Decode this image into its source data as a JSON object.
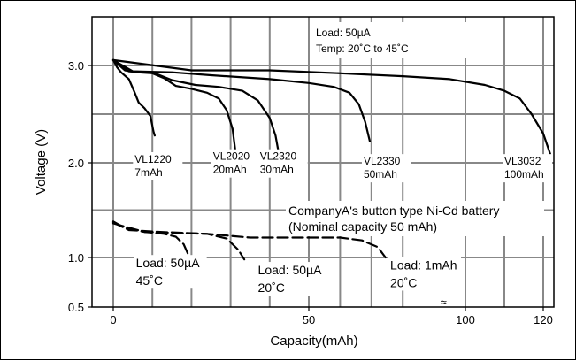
{
  "chart_data": {
    "type": "line",
    "title": "",
    "xlabel": "Capacity(mAh)",
    "ylabel": "Voltage (V)",
    "xlim": [
      -3,
      122
    ],
    "ylim": [
      0.5,
      3.45
    ],
    "x_ticks": [
      "0",
      "50",
      "100",
      "120"
    ],
    "y_ticks": [
      "0.5",
      "1.0",
      "2.0",
      "3.0"
    ],
    "axis_break_glyph": "≈",
    "grid": true,
    "annotations": {
      "lithium_conditions": [
        "Load: 50µA",
        "Temp: 20˚C to 45˚C"
      ],
      "nicd_caption": [
        "CompanyA's button type Ni-Cd battery",
        "(Nominal capacity 50 mAh)"
      ]
    },
    "series": [
      {
        "name": "VL1220",
        "sub": "7mAh",
        "style": "solid",
        "label_x": 5.5,
        "label_y": 2.0,
        "points": [
          [
            0,
            3.05
          ],
          [
            1,
            2.98
          ],
          [
            2,
            2.93
          ],
          [
            4,
            2.86
          ],
          [
            5.5,
            2.72
          ],
          [
            6.5,
            2.62
          ],
          [
            8,
            2.56
          ],
          [
            9.5,
            2.48
          ],
          [
            10.3,
            2.32
          ],
          [
            10.6,
            2.28
          ]
        ]
      },
      {
        "name": "VL2020",
        "sub": "20mAh",
        "style": "solid",
        "label_x": 25.5,
        "label_y": 2.03,
        "points": [
          [
            0,
            3.05
          ],
          [
            3,
            2.95
          ],
          [
            6,
            2.93
          ],
          [
            10,
            2.92
          ],
          [
            13,
            2.87
          ],
          [
            16,
            2.79
          ],
          [
            20,
            2.76
          ],
          [
            24,
            2.72
          ],
          [
            27,
            2.66
          ],
          [
            29,
            2.54
          ],
          [
            30.5,
            2.35
          ],
          [
            31.3,
            2.1
          ]
        ]
      },
      {
        "name": "VL2320",
        "sub": "30mAh",
        "style": "solid",
        "label_x": 37.5,
        "label_y": 2.03,
        "points": [
          [
            0,
            3.05
          ],
          [
            4,
            2.94
          ],
          [
            10,
            2.93
          ],
          [
            15,
            2.85
          ],
          [
            21,
            2.8
          ],
          [
            27,
            2.78
          ],
          [
            33,
            2.74
          ],
          [
            37,
            2.64
          ],
          [
            40,
            2.46
          ],
          [
            41.5,
            2.28
          ],
          [
            42.3,
            2.1
          ]
        ]
      },
      {
        "name": "VL2330",
        "sub": "50mAh",
        "style": "solid",
        "label_x": 67.5,
        "label_y": 1.98,
        "points": [
          [
            0,
            3.05
          ],
          [
            5,
            2.94
          ],
          [
            15,
            2.93
          ],
          [
            25,
            2.9
          ],
          [
            40,
            2.86
          ],
          [
            50,
            2.82
          ],
          [
            58,
            2.78
          ],
          [
            63,
            2.72
          ],
          [
            66,
            2.6
          ],
          [
            68,
            2.42
          ],
          [
            69.5,
            2.22
          ]
        ]
      },
      {
        "name": "VL3032",
        "sub": "100mAh",
        "style": "solid",
        "label_x": 110,
        "label_y": 1.98,
        "points": [
          [
            0,
            3.05
          ],
          [
            20,
            2.95
          ],
          [
            40,
            2.95
          ],
          [
            60,
            2.92
          ],
          [
            80,
            2.89
          ],
          [
            95,
            2.86
          ],
          [
            105,
            2.8
          ],
          [
            110,
            2.74
          ],
          [
            114,
            2.66
          ],
          [
            117,
            2.5
          ],
          [
            120,
            2.3
          ],
          [
            121.5,
            2.06
          ]
        ]
      },
      {
        "name": "Load: 50µA",
        "sub": "45˚C",
        "style": "dashed",
        "label_x": 5.8,
        "label_y": 0.9,
        "points": [
          [
            0,
            1.38
          ],
          [
            3,
            1.31
          ],
          [
            8,
            1.27
          ],
          [
            13,
            1.25
          ],
          [
            16,
            1.22
          ],
          [
            18,
            1.14
          ],
          [
            19.5,
            1.0
          ],
          [
            20.5,
            0.85
          ]
        ]
      },
      {
        "name": "Load: 50µA",
        "sub": "20˚C",
        "style": "dashed",
        "label_x": 37,
        "label_y": 0.83,
        "points": [
          [
            0,
            1.37
          ],
          [
            4,
            1.29
          ],
          [
            12,
            1.27
          ],
          [
            24,
            1.25
          ],
          [
            29,
            1.2
          ],
          [
            32,
            1.08
          ],
          [
            33.5,
            0.98
          ]
        ]
      },
      {
        "name": "Load: 1mAh",
        "sub": "20˚C",
        "style": "dashed",
        "label_x": 76,
        "label_y": 0.88,
        "points": [
          [
            0,
            1.36
          ],
          [
            8,
            1.27
          ],
          [
            24,
            1.25
          ],
          [
            35,
            1.21
          ],
          [
            50,
            1.21
          ],
          [
            60,
            1.21
          ],
          [
            67,
            1.18
          ],
          [
            72,
            1.11
          ],
          [
            74.5,
            1.0
          ]
        ]
      }
    ]
  }
}
